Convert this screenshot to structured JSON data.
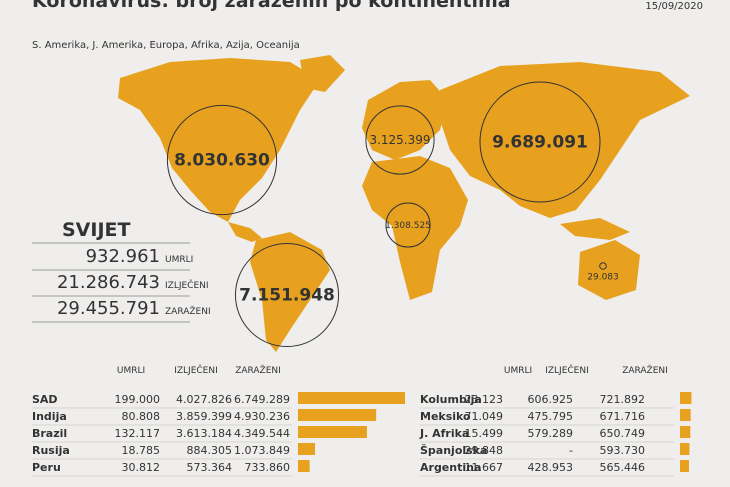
{
  "chart_data": [
    {
      "type": "map-bubble",
      "title": "Koronavirus: broj zaraženih po kontinentima",
      "subtitle": "S. Amerika, J. Amerika, Europa, Afrika, Azija, Oceanija",
      "date": "15/09/2020",
      "color": "#e8a11f",
      "values": [
        8030630,
        7151948,
        3125399,
        1308525,
        9689091,
        29083
      ],
      "value_labels": [
        "8.030.630",
        "7.151.948",
        "3.125.399",
        "1.308.525",
        "9.689.091",
        "29.083"
      ],
      "world": {
        "title": "SVIJET",
        "values": [
          932961,
          21286743,
          29455791
        ],
        "value_labels": [
          "932.961",
          "21.286.743",
          "29.455.791"
        ],
        "labels": [
          "UMRLI",
          "IZLJEČENI",
          "ZARAŽENI"
        ]
      }
    },
    {
      "type": "bar",
      "color": "#e8a11f",
      "categories": [
        "SAD",
        "Indija",
        "Brazil",
        "Rusija",
        "Peru",
        "Kolumbija",
        "Meksiko",
        "J. Afrika",
        "Španjolska",
        "Argentina"
      ],
      "series": [
        {
          "name": "UMRLI",
          "values": [
            199000,
            80808,
            132117,
            18785,
            30812,
            23123,
            71049,
            15499,
            29848,
            11667
          ],
          "value_labels": [
            "199.000",
            "80.808",
            "132.117",
            "18.785",
            "30.812",
            "23.123",
            "71.049",
            "15.499",
            "29.848",
            "11.667"
          ]
        },
        {
          "name": "IZLJEČENI",
          "values": [
            4027826,
            3859399,
            3613184,
            884305,
            573364,
            606925,
            475795,
            579289,
            null,
            428953
          ],
          "value_labels": [
            "4.027.826",
            "3.859.399",
            "3.613.184",
            "884.305",
            "573.364",
            "606.925",
            "475.795",
            "579.289",
            "-",
            "428.953"
          ]
        },
        {
          "name": "ZARAŽENI",
          "values": [
            6749289,
            4930236,
            4349544,
            1073849,
            733860,
            721892,
            671716,
            650749,
            593730,
            565446
          ],
          "value_labels": [
            "6.749.289",
            "4.930.236",
            "4.349.544",
            "1.073.849",
            "733.860",
            "721.892",
            "671.716",
            "650.749",
            "593.730",
            "565.446"
          ]
        }
      ]
    }
  ]
}
